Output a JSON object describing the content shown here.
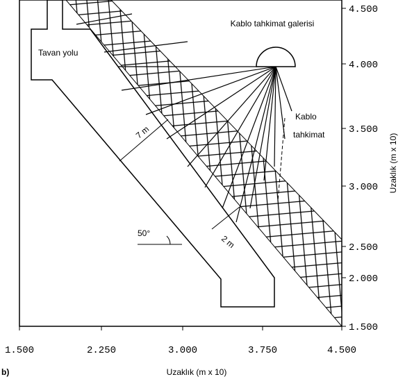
{
  "diagram": {
    "labels": {
      "gallery": "Kablo tahkimat galerisi",
      "road": "Tavan yolu",
      "cable": "Kablo",
      "cable2": "tahkimat",
      "width": "7 m",
      "spacing": "2 m",
      "angle": "50°"
    },
    "x_axis": {
      "title": "Uzaklık (m x 10)",
      "ticks": [
        "1.500",
        "2.250",
        "3.000",
        "3.750",
        "4.500"
      ]
    },
    "y_axis": {
      "title": "Uzaklık (m x 10)",
      "ticks": [
        "4.500",
        "4.000",
        "3.500",
        "3.000",
        "2.500",
        "2.000",
        "1.500"
      ]
    },
    "panel": "b)"
  }
}
